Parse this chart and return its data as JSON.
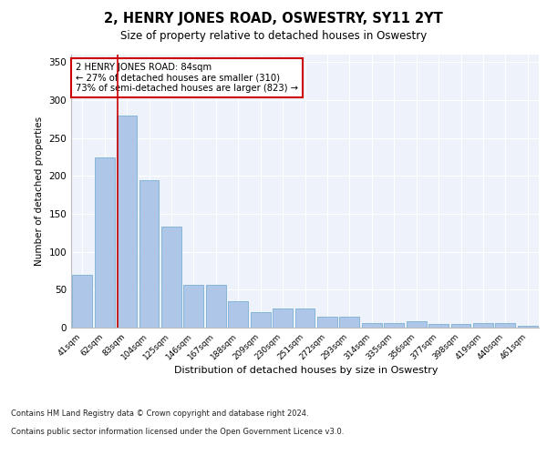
{
  "title": "2, HENRY JONES ROAD, OSWESTRY, SY11 2YT",
  "subtitle": "Size of property relative to detached houses in Oswestry",
  "xlabel": "Distribution of detached houses by size in Oswestry",
  "ylabel": "Number of detached properties",
  "categories": [
    "41sqm",
    "62sqm",
    "83sqm",
    "104sqm",
    "125sqm",
    "146sqm",
    "167sqm",
    "188sqm",
    "209sqm",
    "230sqm",
    "251sqm",
    "272sqm",
    "293sqm",
    "314sqm",
    "335sqm",
    "356sqm",
    "377sqm",
    "398sqm",
    "419sqm",
    "440sqm",
    "461sqm"
  ],
  "values": [
    70,
    224,
    280,
    194,
    133,
    57,
    57,
    35,
    21,
    25,
    25,
    14,
    14,
    6,
    6,
    8,
    5,
    5,
    6,
    6,
    3
  ],
  "bar_color": "#aec6e8",
  "bar_edge_color": "#7bafd4",
  "marker_line_color": "#cc0000",
  "annotation_box_edge_color": "#cc0000",
  "marker_label": "2 HENRY JONES ROAD: 84sqm",
  "marker_pct_smaller": "27% of detached houses are smaller (310)",
  "marker_pct_larger": "73% of semi-detached houses are larger (823)",
  "ylim": [
    0,
    360
  ],
  "yticks": [
    0,
    50,
    100,
    150,
    200,
    250,
    300,
    350
  ],
  "background_color": "#eef2fb",
  "footer_line1": "Contains HM Land Registry data © Crown copyright and database right 2024.",
  "footer_line2": "Contains public sector information licensed under the Open Government Licence v3.0."
}
